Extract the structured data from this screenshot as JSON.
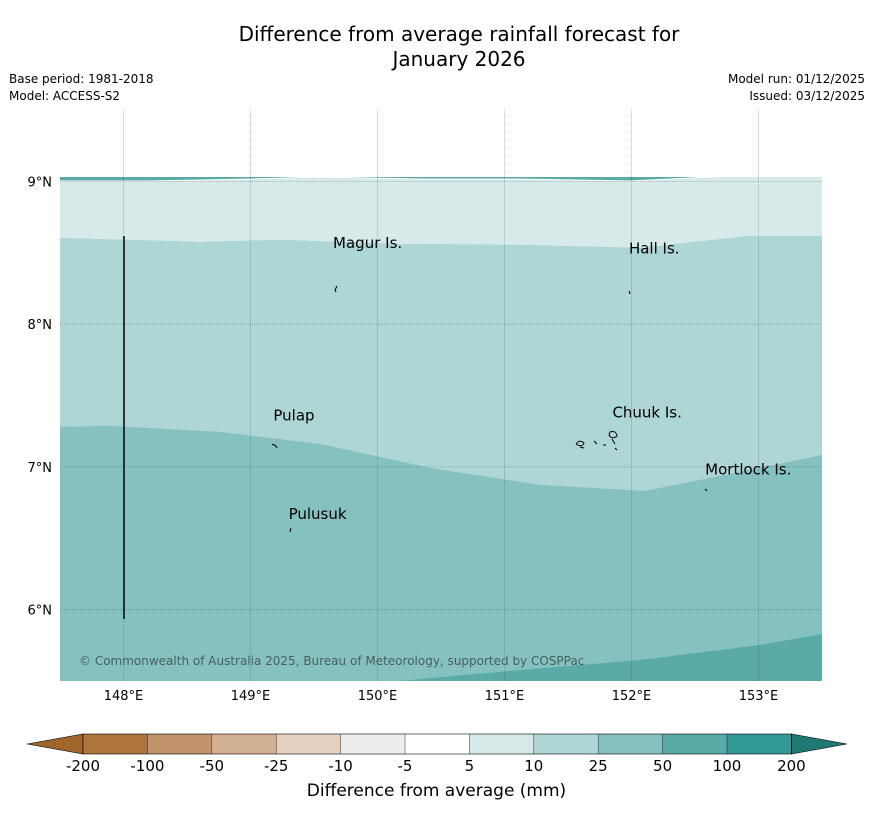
{
  "title": {
    "line1": "Difference from average rainfall forecast for",
    "line2": "January 2026"
  },
  "meta": {
    "base_period": "Base period: 1981-2018",
    "model": "Model: ACCESS-S2",
    "model_run": "Model run: 01/12/2025",
    "issued": "Issued: 03/12/2025"
  },
  "map": {
    "lon_range": [
      147.5,
      153.5
    ],
    "lat_range": [
      5.5,
      9.5
    ],
    "lon_ticks": [
      "148°E",
      "149°E",
      "150°E",
      "151°E",
      "152°E",
      "153°E"
    ],
    "lat_ticks": [
      "9°N",
      "8°N",
      "7°N",
      "6°N"
    ],
    "places": [
      {
        "name": "Magur Is.",
        "lon": 149.65,
        "lat": 8.57
      },
      {
        "name": "Hall Is.",
        "lon": 151.98,
        "lat": 8.53
      },
      {
        "name": "Pulap",
        "lon": 149.18,
        "lat": 7.36
      },
      {
        "name": "Chuuk Is.",
        "lon": 151.85,
        "lat": 7.38
      },
      {
        "name": "Mortlock Is.",
        "lon": 152.58,
        "lat": 6.98
      },
      {
        "name": "Pulusuk",
        "lon": 149.3,
        "lat": 6.67
      }
    ],
    "copyright": "© Commonwealth of Australia 2025, Bureau of Meteorology, supported by COSPPac"
  },
  "colorbar": {
    "ticks": [
      "-200",
      "-100",
      "-50",
      "-25",
      "-10",
      "-5",
      "5",
      "10",
      "25",
      "50",
      "100",
      "200"
    ],
    "colors": [
      "#ad743b",
      "#c0936a",
      "#d3b194",
      "#e3d0bf",
      "#ededeb",
      "#ffffff",
      "#d6eae9",
      "#add6d5",
      "#85c2bf",
      "#5aaaa8",
      "#329894"
    ],
    "under_color": "#a0652b",
    "over_color": "#1f7a76",
    "label": "Difference from average (mm)"
  },
  "chart_data": {
    "type": "heatmap",
    "title": "Difference from average rainfall forecast for January 2026",
    "units": "mm",
    "levels": [
      -200,
      -100,
      -50,
      -25,
      -10,
      -5,
      5,
      10,
      25,
      50,
      100,
      200
    ],
    "category_bands_north_to_south": [
      "5 to 10",
      "10 to 25",
      "25 to 50",
      "50 to 100"
    ]
  }
}
